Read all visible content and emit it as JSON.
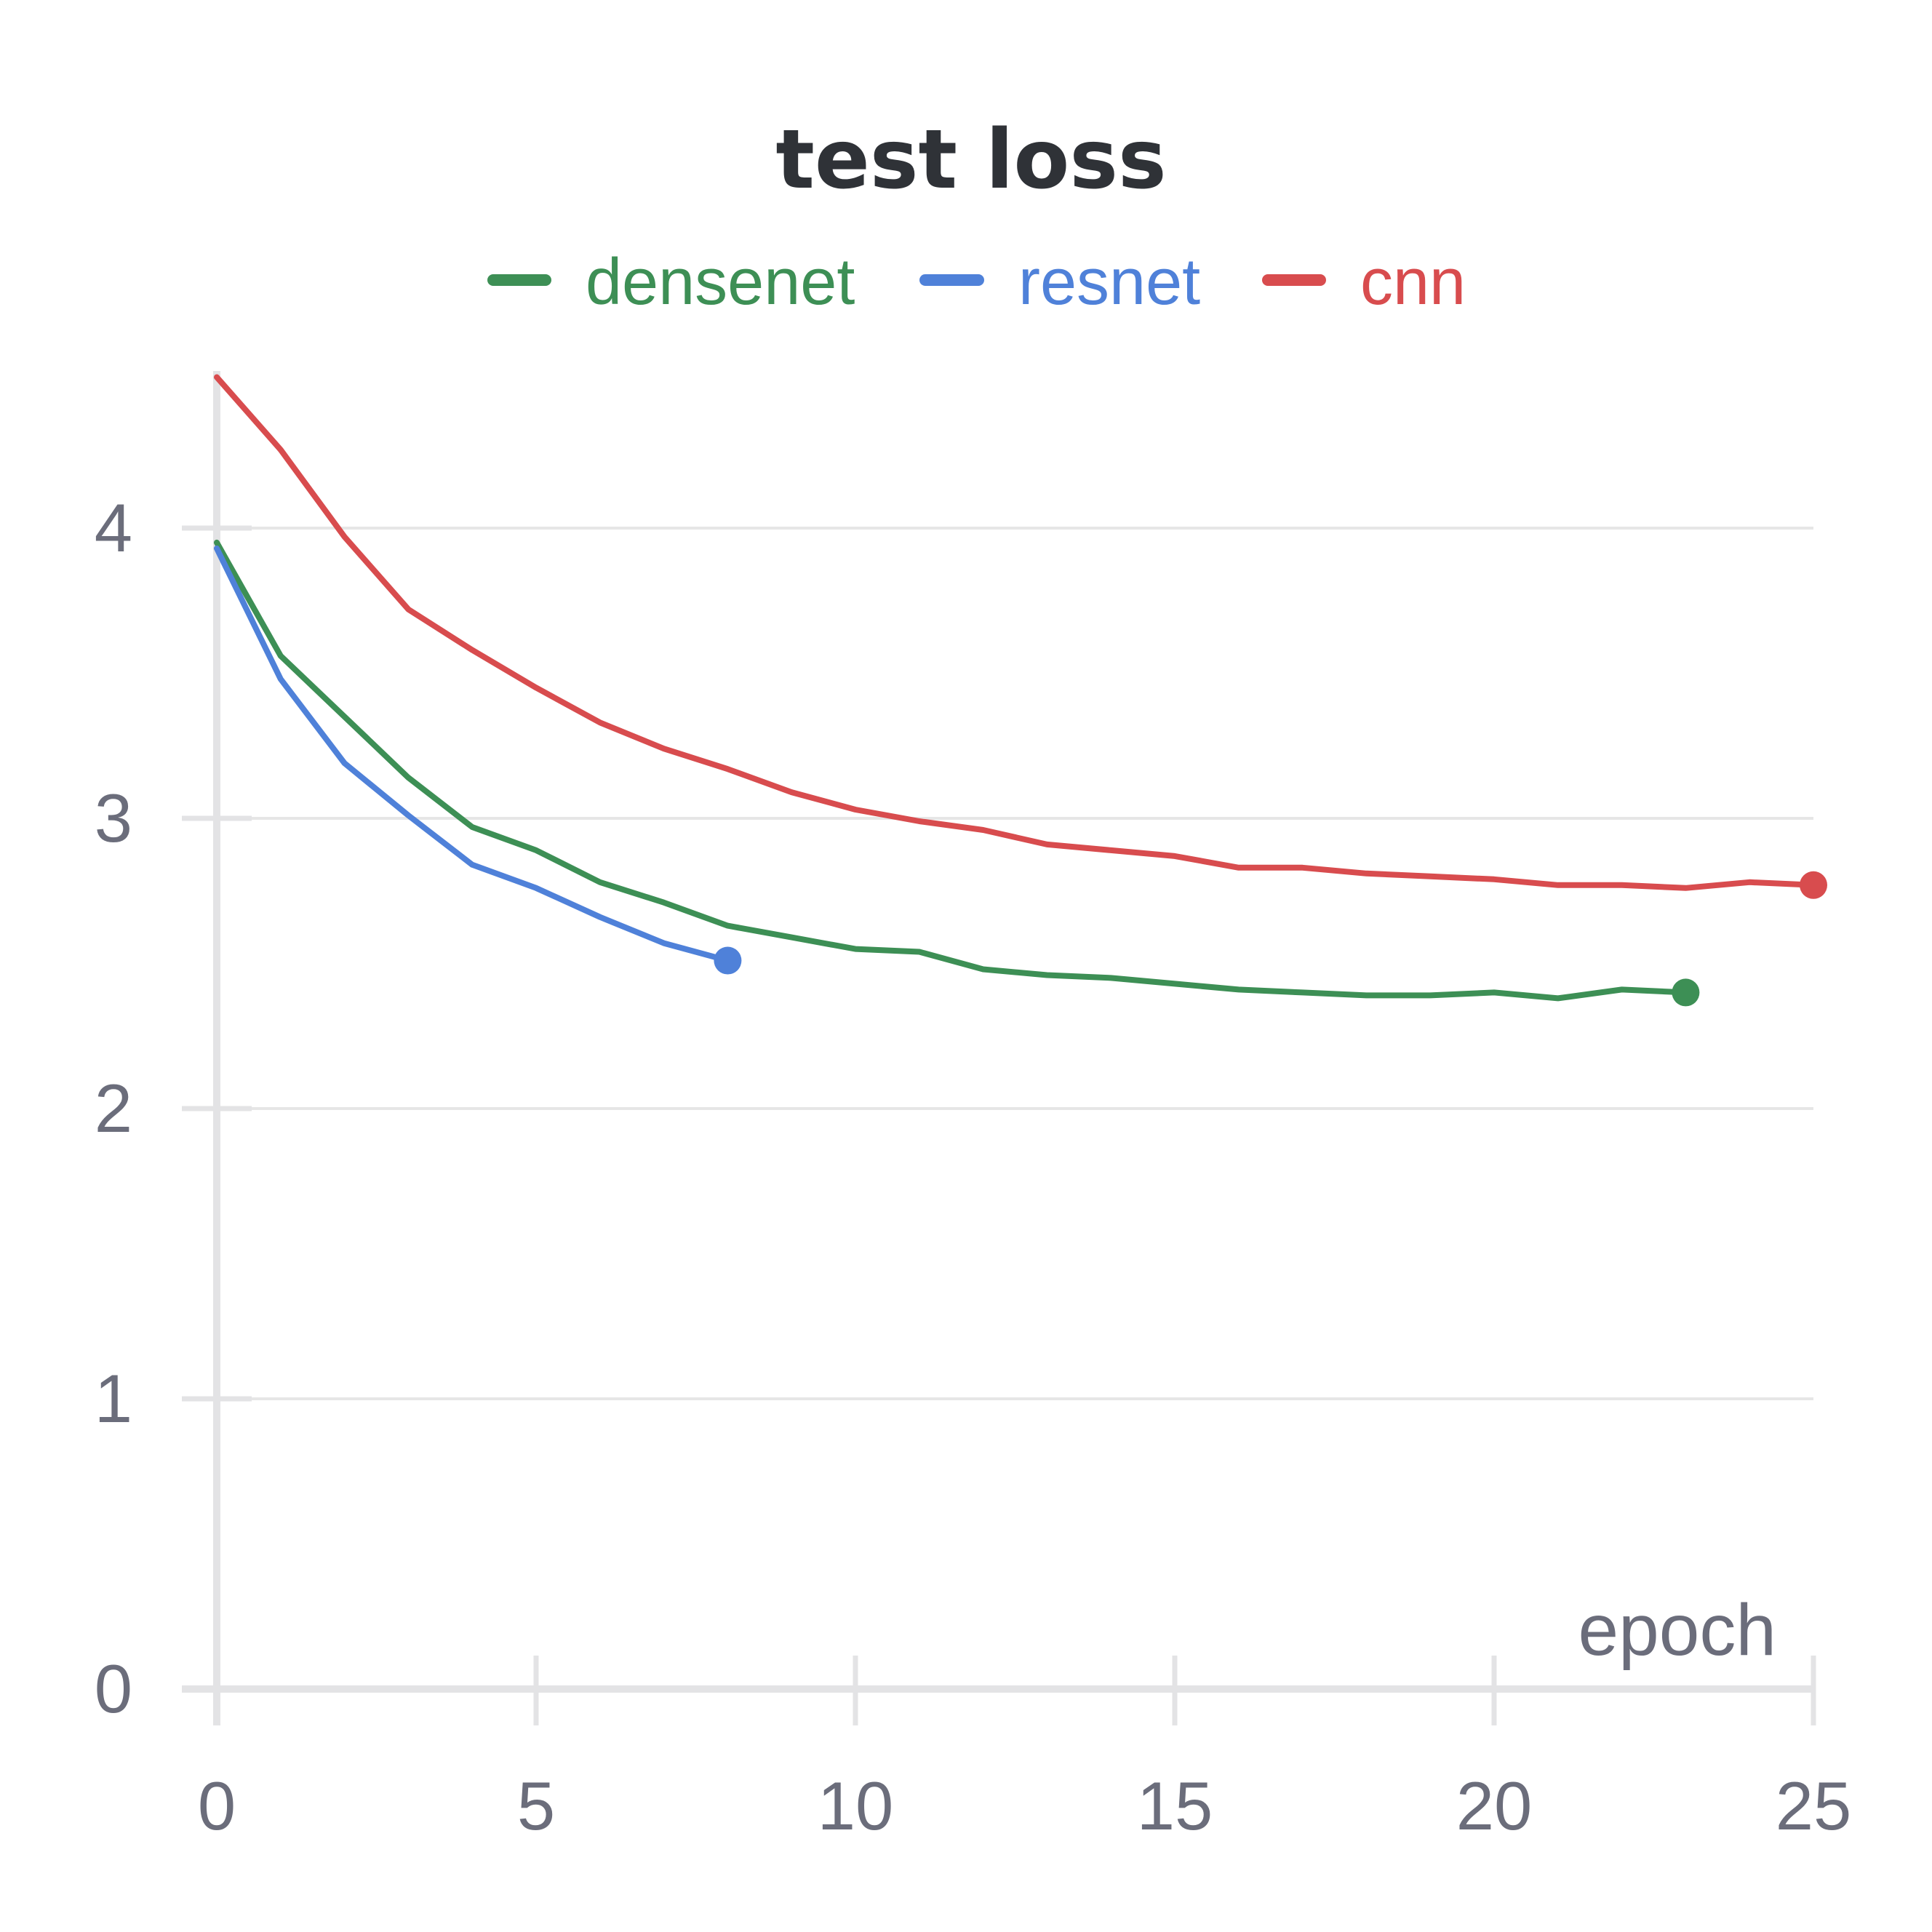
{
  "chart_data": {
    "type": "line",
    "title": "test loss",
    "xlabel": "epoch",
    "ylabel": "",
    "xlim": [
      0,
      25
    ],
    "ylim": [
      0,
      4.5
    ],
    "xticks": [
      0,
      5,
      10,
      15,
      20,
      25
    ],
    "yticks": [
      0,
      1,
      2,
      3,
      4
    ],
    "grid": "horizontal",
    "legend_position": "top",
    "series": [
      {
        "name": "densenet",
        "color": "#3d8f55",
        "x": [
          0,
          1,
          2,
          3,
          4,
          5,
          6,
          7,
          8,
          9,
          10,
          11,
          12,
          13,
          14,
          15,
          16,
          17,
          18,
          19,
          20,
          21,
          22,
          23
        ],
        "y": [
          3.95,
          3.56,
          3.35,
          3.14,
          2.97,
          2.89,
          2.78,
          2.71,
          2.63,
          2.59,
          2.55,
          2.54,
          2.48,
          2.46,
          2.45,
          2.43,
          2.41,
          2.4,
          2.39,
          2.39,
          2.4,
          2.38,
          2.41,
          2.4
        ]
      },
      {
        "name": "resnet",
        "color": "#4f81d9",
        "x": [
          0,
          1,
          2,
          3,
          4,
          5,
          6,
          7,
          8
        ],
        "y": [
          3.93,
          3.48,
          3.19,
          3.01,
          2.84,
          2.76,
          2.66,
          2.57,
          2.51
        ]
      },
      {
        "name": "cnn",
        "color": "#d84c4e",
        "x": [
          0,
          1,
          2,
          3,
          4,
          5,
          6,
          7,
          8,
          9,
          10,
          11,
          12,
          13,
          14,
          15,
          16,
          17,
          18,
          19,
          20,
          21,
          22,
          23,
          24,
          25
        ],
        "y": [
          4.52,
          4.27,
          3.97,
          3.72,
          3.58,
          3.45,
          3.33,
          3.24,
          3.17,
          3.09,
          3.03,
          2.99,
          2.96,
          2.91,
          2.89,
          2.87,
          2.83,
          2.83,
          2.81,
          2.8,
          2.79,
          2.77,
          2.77,
          2.76,
          2.78,
          2.77
        ]
      }
    ]
  }
}
